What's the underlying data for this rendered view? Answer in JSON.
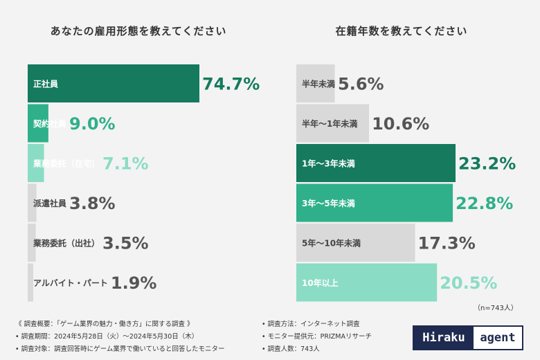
{
  "colors": {
    "dark": "#157a5e",
    "mid": "#2fb08a",
    "light": "#8bdcc4",
    "gray": "#d9d9d9",
    "value_dark": "#157a5e",
    "value_mid": "#2fb08a",
    "value_light": "#8bdcc4",
    "value_gray": "#555555"
  },
  "chart_data": [
    {
      "type": "bar",
      "title": "あなたの雇用形態を教えてください",
      "categories": [
        "正社員",
        "契約社員",
        "業務委託（在宅）",
        "派遣社員",
        "業務委託（出社）",
        "アルバイト・パート"
      ],
      "values": [
        74.7,
        9.0,
        7.1,
        3.8,
        3.5,
        1.9
      ],
      "value_labels": [
        "74.7%",
        "9.0%",
        "7.1%",
        "3.8%",
        "3.5%",
        "1.9%"
      ],
      "bar_colors": [
        "dark",
        "mid",
        "light",
        "gray",
        "gray",
        "gray"
      ]
    },
    {
      "type": "bar",
      "title": "在籍年数を教えてください",
      "categories": [
        "半年未満",
        "半年〜1年未満",
        "1年〜3年未満",
        "3年〜5年未満",
        "5年〜10年未満",
        "10年以上"
      ],
      "values": [
        5.6,
        10.6,
        23.2,
        22.8,
        17.3,
        20.5
      ],
      "value_labels": [
        "5.6%",
        "10.6%",
        "23.2%",
        "22.8%",
        "17.3%",
        "20.5%"
      ],
      "bar_colors": [
        "gray",
        "gray",
        "dark",
        "mid",
        "gray",
        "light"
      ]
    }
  ],
  "note": "（n=743人）",
  "footer": {
    "left": [
      "《 調査概要：「ゲーム業界の魅力・働き方」に関する調査 》",
      "• 調査期間：2024年5月28日（火）〜2024年5月30日（木）",
      "• 調査対象：調査回答時にゲーム業界で働いていると回答したモニター"
    ],
    "right": [
      "• 調査方法：インターネット調査",
      "• モニター提供元：PRIZMAリサーチ",
      "• 調査人数：743人"
    ]
  },
  "logo": {
    "part1": "Hiraku",
    "part2": "agent"
  }
}
